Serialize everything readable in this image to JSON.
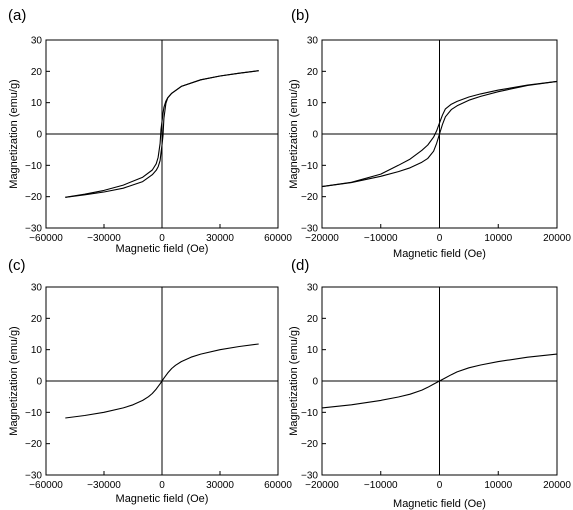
{
  "chart_data": [
    {
      "panel_label": "(a)",
      "type": "line",
      "xlabel": "Magnetic field (Oe)",
      "ylabel": "Magnetization (emu/g)",
      "xlim": [
        -60000,
        60000
      ],
      "ylim": [
        -30,
        30
      ],
      "xticks": [
        -60000,
        -30000,
        0,
        30000,
        60000
      ],
      "yticks": [
        -30,
        -20,
        -10,
        0,
        10,
        20,
        30
      ],
      "xtick_labels": [
        "−60000",
        "−30000",
        "0",
        "30000",
        "60000"
      ],
      "ytick_labels": [
        "−30",
        "−20",
        "−10",
        "0",
        "10",
        "20",
        "30"
      ],
      "grid": false,
      "zero_lines": true,
      "series": [
        {
          "x": [
            -50000,
            -40000,
            -30000,
            -20000,
            -10000,
            -5000,
            -3000,
            -2000,
            -1000,
            -500,
            0,
            500,
            1000,
            2000,
            3000,
            5000,
            10000,
            20000,
            30000,
            40000,
            50000
          ],
          "y": [
            -20.2,
            -19.2,
            -18.0,
            -16.3,
            -13.8,
            -11.5,
            -9.5,
            -7.5,
            -3.0,
            1.5,
            4.0,
            6.5,
            8.5,
            10.5,
            11.6,
            13.0,
            15.2,
            17.3,
            18.5,
            19.4,
            20.2
          ]
        },
        {
          "x": [
            50000,
            40000,
            30000,
            20000,
            10000,
            5000,
            3000,
            2000,
            1000,
            500,
            0,
            -500,
            -1000,
            -2000,
            -3000,
            -5000,
            -10000,
            -20000,
            -30000,
            -40000,
            -50000
          ],
          "y": [
            20.2,
            19.4,
            18.5,
            17.3,
            15.2,
            13.0,
            11.6,
            9.8,
            5.0,
            -0.5,
            -3.5,
            -6.0,
            -8.5,
            -10.5,
            -11.6,
            -13.0,
            -15.2,
            -17.3,
            -18.5,
            -19.4,
            -20.2
          ]
        }
      ]
    },
    {
      "panel_label": "(b)",
      "type": "line",
      "xlabel": "Magnetic field (Oe)",
      "ylabel": "Magnetization (emu/g)",
      "xlim": [
        -20000,
        20000
      ],
      "ylim": [
        -30,
        30
      ],
      "xticks": [
        -20000,
        -10000,
        0,
        10000,
        20000
      ],
      "yticks": [
        -30,
        -20,
        -10,
        0,
        10,
        20,
        30
      ],
      "xtick_labels": [
        "−20000",
        "−10000",
        "0",
        "10000",
        "20000"
      ],
      "ytick_labels": [
        "−30",
        "−20",
        "−10",
        "0",
        "10",
        "20",
        "30"
      ],
      "grid": false,
      "zero_lines": true,
      "series": [
        {
          "x": [
            -20000,
            -15000,
            -10000,
            -7000,
            -5000,
            -3000,
            -2000,
            -1000,
            -500,
            0,
            500,
            1000,
            2000,
            3000,
            5000,
            7000,
            10000,
            15000,
            20000
          ],
          "y": [
            -16.8,
            -15.5,
            -13.5,
            -12.0,
            -10.8,
            -9.0,
            -7.8,
            -5.5,
            -3.0,
            0.0,
            3.0,
            5.5,
            7.8,
            9.0,
            10.8,
            12.0,
            13.5,
            15.5,
            16.8
          ]
        },
        {
          "x": [
            20000,
            15000,
            10000,
            7000,
            5000,
            3000,
            2000,
            1000,
            500,
            0,
            -500,
            -1000,
            -2000,
            -3000,
            -5000,
            -7000,
            -10000,
            -15000,
            -20000
          ],
          "y": [
            16.8,
            15.6,
            14.0,
            12.8,
            11.8,
            10.4,
            9.5,
            8.0,
            6.0,
            3.5,
            1.0,
            -1.0,
            -3.5,
            -5.2,
            -8.0,
            -10.0,
            -12.8,
            -15.4,
            -16.8
          ]
        }
      ]
    },
    {
      "panel_label": "(c)",
      "type": "line",
      "xlabel": "Magnetic field (Oe)",
      "ylabel": "Magnetization (emu/g)",
      "xlim": [
        -60000,
        60000
      ],
      "ylim": [
        -30,
        30
      ],
      "xticks": [
        -60000,
        -30000,
        0,
        30000,
        60000
      ],
      "yticks": [
        -30,
        -20,
        -10,
        0,
        10,
        20,
        30
      ],
      "xtick_labels": [
        "−60000",
        "−30000",
        "0",
        "30000",
        "60000"
      ],
      "ytick_labels": [
        "−30",
        "−20",
        "−10",
        "0",
        "10",
        "20",
        "30"
      ],
      "grid": false,
      "zero_lines": true,
      "series": [
        {
          "x": [
            -50000,
            -40000,
            -30000,
            -20000,
            -15000,
            -10000,
            -7000,
            -5000,
            -3000,
            -1000,
            0,
            1000,
            3000,
            5000,
            7000,
            10000,
            15000,
            20000,
            30000,
            40000,
            50000
          ],
          "y": [
            -11.8,
            -11.0,
            -10.0,
            -8.6,
            -7.6,
            -6.2,
            -5.0,
            -4.0,
            -2.6,
            -0.9,
            0.0,
            0.9,
            2.6,
            4.0,
            5.0,
            6.2,
            7.6,
            8.6,
            10.0,
            11.0,
            11.8
          ]
        }
      ]
    },
    {
      "panel_label": "(d)",
      "type": "line",
      "xlabel": "Magnetic field (Oe)",
      "ylabel": "Magnetization (emu/g)",
      "xlim": [
        -20000,
        20000
      ],
      "ylim": [
        -30,
        30
      ],
      "xticks": [
        -20000,
        -10000,
        0,
        10000,
        20000
      ],
      "yticks": [
        -30,
        -20,
        -10,
        0,
        10,
        20,
        30
      ],
      "xtick_labels": [
        "−20000",
        "−10000",
        "0",
        "10000",
        "20000"
      ],
      "ytick_labels": [
        "−30",
        "−20",
        "−10",
        "0",
        "10",
        "20",
        "30"
      ],
      "grid": false,
      "zero_lines": true,
      "series": [
        {
          "x": [
            -20000,
            -15000,
            -10000,
            -7000,
            -5000,
            -3000,
            -2000,
            -1000,
            0,
            1000,
            2000,
            3000,
            5000,
            7000,
            10000,
            15000,
            20000
          ],
          "y": [
            -8.6,
            -7.6,
            -6.2,
            -5.1,
            -4.2,
            -2.9,
            -2.0,
            -1.0,
            0.0,
            1.0,
            2.0,
            2.9,
            4.2,
            5.1,
            6.2,
            7.6,
            8.6
          ]
        }
      ]
    }
  ]
}
